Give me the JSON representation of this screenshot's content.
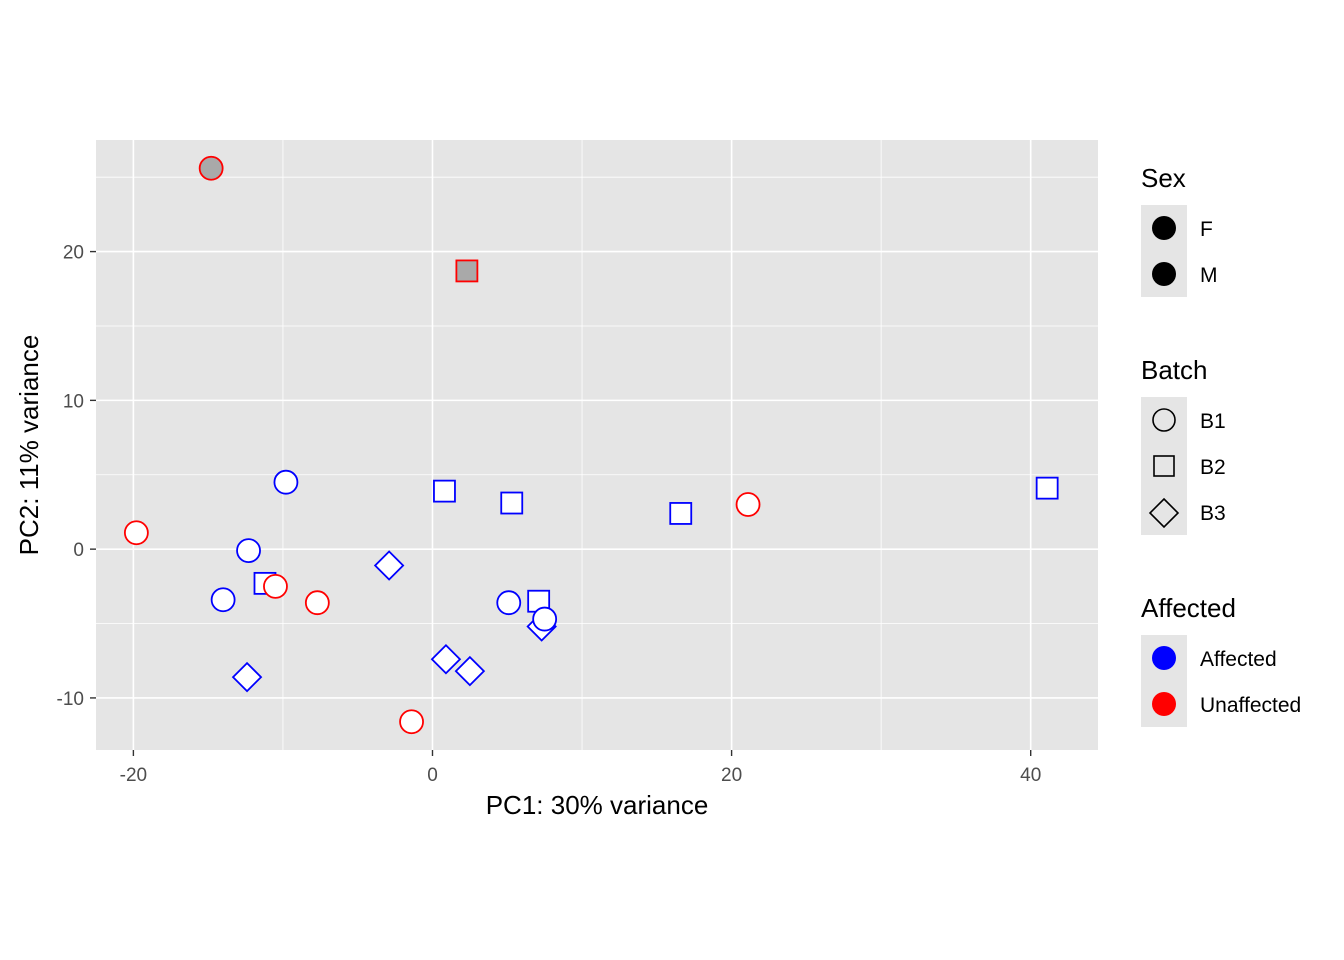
{
  "chart_data": {
    "type": "scatter",
    "title": "",
    "xlabel": "PC1: 30% variance",
    "ylabel": "PC2: 11% variance",
    "xlim": [
      -22.5,
      44.5
    ],
    "ylim": [
      -13.5,
      27.5
    ],
    "x_ticks": [
      -20,
      0,
      20,
      40
    ],
    "y_ticks": [
      -10,
      0,
      10,
      20
    ],
    "x_tick_labels": [
      "-20",
      "0",
      "20",
      "40"
    ],
    "y_tick_labels": [
      "-10",
      "0",
      "10",
      "20"
    ],
    "grid": true,
    "legend_position": "right",
    "colors": {
      "Affected": "#0000ff",
      "Unaffected": "#ff0000",
      "panel_background": "#e5e5e5",
      "grid": "#ffffff",
      "fill_F": "none",
      "fill_M": "#a9a9a9"
    },
    "points": [
      {
        "x": -14.8,
        "y": 25.6,
        "batch": "B1",
        "affected": "Unaffected",
        "sex": "M"
      },
      {
        "x": 2.3,
        "y": 18.7,
        "batch": "B2",
        "affected": "Unaffected",
        "sex": "M"
      },
      {
        "x": -9.8,
        "y": 4.5,
        "batch": "B1",
        "affected": "Affected",
        "sex": "F"
      },
      {
        "x": -19.8,
        "y": 1.1,
        "batch": "B1",
        "affected": "Unaffected",
        "sex": "F"
      },
      {
        "x": -12.3,
        "y": -0.1,
        "batch": "B1",
        "affected": "Affected",
        "sex": "F"
      },
      {
        "x": -11.2,
        "y": -2.3,
        "batch": "B2",
        "affected": "Affected",
        "sex": "F"
      },
      {
        "x": -10.5,
        "y": -2.5,
        "batch": "B1",
        "affected": "Unaffected",
        "sex": "F"
      },
      {
        "x": -14.0,
        "y": -3.4,
        "batch": "B1",
        "affected": "Affected",
        "sex": "F"
      },
      {
        "x": -7.7,
        "y": -3.6,
        "batch": "B1",
        "affected": "Unaffected",
        "sex": "F"
      },
      {
        "x": -12.4,
        "y": -8.6,
        "batch": "B3",
        "affected": "Affected",
        "sex": "F"
      },
      {
        "x": -2.9,
        "y": -1.1,
        "batch": "B3",
        "affected": "Affected",
        "sex": "F"
      },
      {
        "x": -1.4,
        "y": -11.6,
        "batch": "B1",
        "affected": "Unaffected",
        "sex": "F"
      },
      {
        "x": 0.8,
        "y": 3.9,
        "batch": "B2",
        "affected": "Affected",
        "sex": "F"
      },
      {
        "x": 5.3,
        "y": 3.1,
        "batch": "B2",
        "affected": "Affected",
        "sex": "F"
      },
      {
        "x": 0.9,
        "y": -7.4,
        "batch": "B3",
        "affected": "Affected",
        "sex": "F"
      },
      {
        "x": 2.5,
        "y": -8.2,
        "batch": "B3",
        "affected": "Affected",
        "sex": "F"
      },
      {
        "x": 5.1,
        "y": -3.6,
        "batch": "B1",
        "affected": "Affected",
        "sex": "F"
      },
      {
        "x": 7.1,
        "y": -3.5,
        "batch": "B2",
        "affected": "Affected",
        "sex": "F"
      },
      {
        "x": 7.3,
        "y": -5.2,
        "batch": "B3",
        "affected": "Affected",
        "sex": "F"
      },
      {
        "x": 7.5,
        "y": -4.7,
        "batch": "B1",
        "affected": "Affected",
        "sex": "F"
      },
      {
        "x": 16.6,
        "y": 2.4,
        "batch": "B2",
        "affected": "Affected",
        "sex": "F"
      },
      {
        "x": 21.1,
        "y": 3.0,
        "batch": "B1",
        "affected": "Unaffected",
        "sex": "F"
      },
      {
        "x": 41.1,
        "y": 4.1,
        "batch": "B2",
        "affected": "Affected",
        "sex": "F"
      }
    ]
  },
  "legend": {
    "sex": {
      "title": "Sex",
      "items": [
        "F",
        "M"
      ]
    },
    "batch": {
      "title": "Batch",
      "items": [
        "B1",
        "B2",
        "B3"
      ]
    },
    "affected": {
      "title": "Affected",
      "items": [
        "Affected",
        "Unaffected"
      ]
    }
  }
}
